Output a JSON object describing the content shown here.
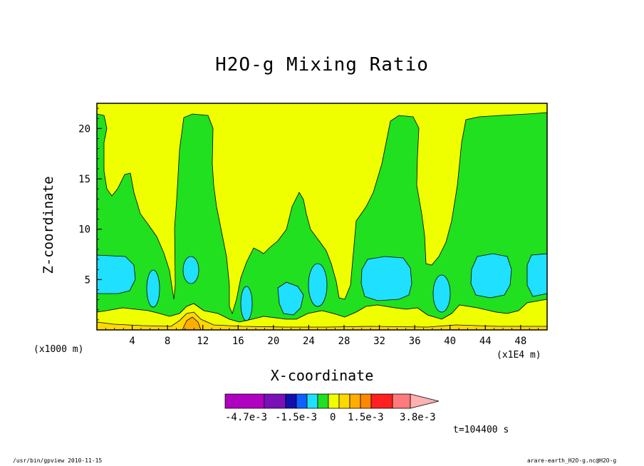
{
  "chart_data": {
    "type": "contour",
    "title": "H2O-g Mixing Ratio",
    "xlabel": "X-coordinate",
    "ylabel": "Z-coordinate",
    "x_unit_left": "(x1000 m)",
    "x_unit_right": "(x1E4 m)",
    "x_ticks": [
      "4",
      "8",
      "12",
      "16",
      "20",
      "24",
      "28",
      "32",
      "36",
      "40",
      "44",
      "48"
    ],
    "y_ticks": [
      "5",
      "10",
      "15",
      "20"
    ],
    "xlim": [
      0,
      51
    ],
    "ylim": [
      0,
      22.5
    ],
    "colorbar": {
      "labels": [
        "-4.7e-3",
        "-1.5e-3",
        "0",
        "1.5e-3",
        "3.8e-3"
      ],
      "colors": [
        "#b000c0",
        "#7a10b8",
        "#1010b0",
        "#1060ff",
        "#20e0ff",
        "#20e020",
        "#f0ff00",
        "#ffd800",
        "#ffae00",
        "#ff8800",
        "#ff2020",
        "#ff7a7a",
        "#ffb0b0"
      ]
    },
    "fill_colors": {
      "background": "#f0ff00",
      "green": "#20e020",
      "cyan": "#20e0ff",
      "gold": "#ffd800",
      "orange": "#ffae00"
    },
    "time_label": "t=104400 s"
  },
  "footer": {
    "left": "/usr/bin/gpview   2010-11-15",
    "right": "arare-earth_H2O-g.nc@H2O-g"
  }
}
